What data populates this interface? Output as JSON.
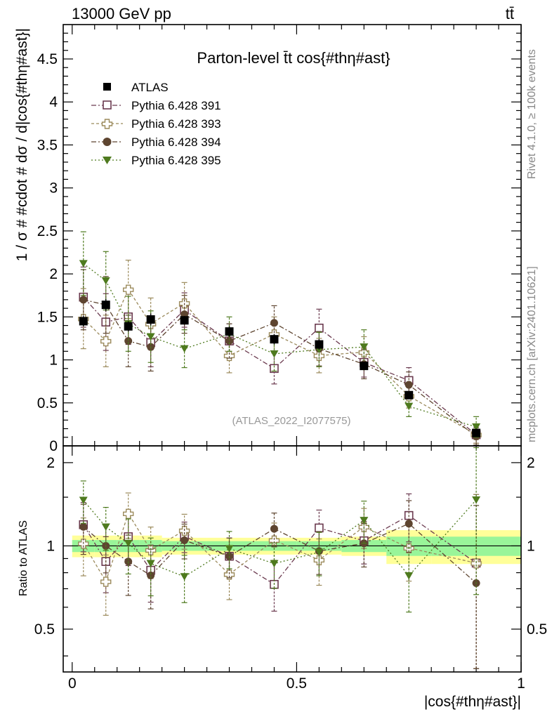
{
  "header": {
    "energy_label": "13000 GeV pp",
    "process_label": "tt̄",
    "rivet_label": "Rivet 4.1.0, ≥ 100k events",
    "mcplots_label": "mcplots.cern.ch [arXiv:2401.10621]"
  },
  "chart_data": {
    "type": "scatter",
    "title": "Parton-level t̄t cos{#thη#ast}",
    "analysis_label": "(ATLAS_2022_I2077575)",
    "xlabel": "|cos{#thη#ast}|",
    "ylabel": "1 / σ # #cdot # dσ / d|cos{#thη#ast}|",
    "ratio_ylabel": "Ratio to ATLAS",
    "xlim": [
      -0.02,
      1.0
    ],
    "ylim": [
      0,
      4.9
    ],
    "ratio_ylim": [
      0.35,
      2.3
    ],
    "x_ticks": [
      {
        "value": 0,
        "label": "0"
      },
      {
        "value": 0.5,
        "label": "0.5"
      },
      {
        "value": 1,
        "label": "1"
      }
    ],
    "y_ticks": [
      {
        "value": 0,
        "label": "0"
      },
      {
        "value": 0.5,
        "label": "0.5"
      },
      {
        "value": 1,
        "label": "1"
      },
      {
        "value": 1.5,
        "label": "1.5"
      },
      {
        "value": 2,
        "label": "2"
      },
      {
        "value": 2.5,
        "label": "2.5"
      },
      {
        "value": 3,
        "label": "3"
      },
      {
        "value": 3.5,
        "label": "3.5"
      },
      {
        "value": 4,
        "label": "4"
      },
      {
        "value": 4.5,
        "label": "4.5"
      }
    ],
    "ratio_y_ticks": [
      {
        "value": 0.5,
        "label": "0.5"
      },
      {
        "value": 1,
        "label": "1"
      },
      {
        "value": 2,
        "label": "2"
      }
    ],
    "bin_centers": [
      0.025,
      0.075,
      0.125,
      0.175,
      0.25,
      0.35,
      0.45,
      0.55,
      0.65,
      0.75,
      0.9
    ],
    "bin_edges": [
      0,
      0.05,
      0.1,
      0.15,
      0.2,
      0.3,
      0.4,
      0.5,
      0.6,
      0.7,
      0.8,
      1.0
    ],
    "data_series": {
      "name": "ATLAS",
      "color": "#000000",
      "values": [
        1.45,
        1.64,
        1.39,
        1.47,
        1.46,
        1.33,
        1.24,
        1.18,
        0.93,
        0.59,
        0.15
      ],
      "errors": [
        0.06,
        0.07,
        0.06,
        0.07,
        0.05,
        0.06,
        0.06,
        0.06,
        0.05,
        0.05,
        0.03
      ]
    },
    "ratio_band_inner": [
      0.05,
      0.05,
      0.05,
      0.05,
      0.04,
      0.04,
      0.04,
      0.04,
      0.05,
      0.08,
      0.08
    ],
    "ratio_band_outer": [
      0.09,
      0.09,
      0.09,
      0.09,
      0.07,
      0.07,
      0.07,
      0.07,
      0.08,
      0.14,
      0.14
    ],
    "series": [
      {
        "name": "Pythia 6.428 391",
        "color": "#6b3a4f",
        "marker": "open-square",
        "values": [
          1.73,
          1.44,
          1.5,
          1.2,
          1.58,
          1.22,
          0.9,
          1.37,
          0.97,
          0.76,
          0.13
        ],
        "errors": [
          0.35,
          0.33,
          0.32,
          0.28,
          0.2,
          0.2,
          0.18,
          0.22,
          0.17,
          0.15,
          0.1
        ]
      },
      {
        "name": "Pythia 6.428 393",
        "color": "#9b8a5b",
        "marker": "open-cross",
        "values": [
          1.48,
          1.22,
          1.82,
          1.42,
          1.66,
          1.05,
          1.3,
          1.05,
          1.09,
          0.58,
          0.13
        ],
        "errors": [
          0.35,
          0.3,
          0.34,
          0.3,
          0.24,
          0.2,
          0.2,
          0.2,
          0.18,
          0.14,
          0.1
        ]
      },
      {
        "name": "Pythia 6.428 394",
        "color": "#5e4530",
        "marker": "filled-circle",
        "values": [
          1.7,
          1.64,
          1.22,
          1.15,
          1.53,
          1.22,
          1.43,
          1.13,
          0.95,
          0.71,
          0.11
        ],
        "errors": [
          0.35,
          0.33,
          0.3,
          0.28,
          0.22,
          0.2,
          0.2,
          0.2,
          0.17,
          0.15,
          0.1
        ]
      },
      {
        "name": "Pythia 6.428 395",
        "color": "#4e7a1e",
        "marker": "filled-triangle-down",
        "values": [
          2.12,
          1.92,
          1.42,
          1.27,
          1.13,
          1.3,
          1.07,
          1.12,
          1.15,
          0.46,
          0.22
        ],
        "errors": [
          0.37,
          0.34,
          0.32,
          0.3,
          0.22,
          0.2,
          0.2,
          0.2,
          0.2,
          0.12,
          0.12
        ]
      }
    ]
  }
}
